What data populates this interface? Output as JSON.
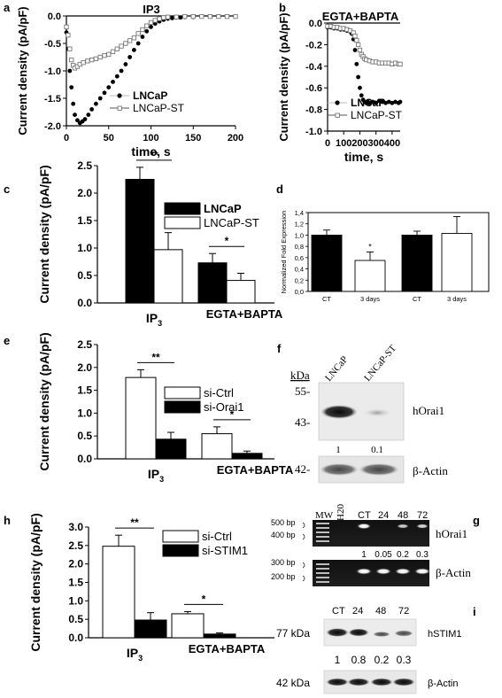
{
  "panel_letters": [
    "a",
    "b",
    "c",
    "d",
    "e",
    "f",
    "h",
    "g",
    "i"
  ],
  "chart_data": [
    {
      "panel": "a",
      "type": "scatter",
      "title": "IP3",
      "xlabel": "time, s",
      "ylabel": "Current density (pA/pF)",
      "xlim": [
        0,
        200
      ],
      "ylim": [
        -2.0,
        0.0
      ],
      "xticks": [
        0,
        50,
        100,
        150,
        200
      ],
      "yticks": [
        -2.0,
        -1.5,
        -1.0,
        -0.5,
        0.0
      ],
      "legend_position": "center-right",
      "series": [
        {
          "name": "LNCaP",
          "marker": "filled-circle",
          "x": [
            0,
            2,
            4,
            6,
            8,
            10,
            13,
            16,
            19,
            22,
            26,
            30,
            35,
            40,
            45,
            50,
            55,
            60,
            65,
            70,
            75,
            80,
            85,
            90,
            95,
            100,
            105,
            110,
            115,
            120,
            125,
            130,
            135,
            140,
            150,
            160,
            170,
            180,
            190,
            200
          ],
          "y": [
            -0.3,
            -0.6,
            -1.0,
            -1.3,
            -1.6,
            -1.8,
            -1.9,
            -1.95,
            -1.92,
            -1.88,
            -1.8,
            -1.7,
            -1.6,
            -1.5,
            -1.4,
            -1.3,
            -1.2,
            -1.1,
            -1.0,
            -0.88,
            -0.75,
            -0.62,
            -0.5,
            -0.38,
            -0.28,
            -0.2,
            -0.14,
            -0.1,
            -0.07,
            -0.05,
            -0.04,
            -0.03,
            -0.03,
            -0.02,
            -0.02,
            -0.01,
            -0.01,
            -0.01,
            -0.01,
            -0.01
          ]
        },
        {
          "name": "LNCaP-ST",
          "marker": "open-square",
          "x": [
            0,
            2,
            4,
            6,
            8,
            10,
            13,
            16,
            20,
            25,
            30,
            35,
            40,
            45,
            50,
            55,
            60,
            65,
            70,
            75,
            80,
            85,
            90,
            95,
            100,
            105,
            110,
            115,
            120,
            130,
            140,
            150,
            160,
            170,
            180,
            190,
            200
          ],
          "y": [
            -0.2,
            -0.35,
            -0.6,
            -0.8,
            -0.9,
            -0.95,
            -0.92,
            -0.88,
            -0.85,
            -0.82,
            -0.8,
            -0.78,
            -0.75,
            -0.72,
            -0.7,
            -0.65,
            -0.6,
            -0.55,
            -0.5,
            -0.45,
            -0.4,
            -0.32,
            -0.25,
            -0.18,
            -0.12,
            -0.08,
            -0.05,
            -0.03,
            -0.02,
            -0.02,
            -0.01,
            -0.01,
            -0.01,
            -0.01,
            -0.01,
            -0.01,
            -0.01
          ]
        }
      ]
    },
    {
      "panel": "b",
      "type": "scatter",
      "title": "EGTA+BAPTA",
      "xlabel": "time, s",
      "ylabel": "Current density (pA/pF)",
      "xlim": [
        0,
        450
      ],
      "ylim": [
        -1.0,
        0.0
      ],
      "xticks": [
        0,
        100,
        200,
        300,
        400
      ],
      "yticks": [
        -1.0,
        -0.8,
        -0.6,
        -0.4,
        -0.2,
        0.0
      ],
      "legend_position": "bottom-left",
      "series": [
        {
          "name": "LNCaP",
          "marker": "filled-circle",
          "x": [
            0,
            20,
            40,
            60,
            80,
            100,
            120,
            140,
            150,
            160,
            170,
            180,
            190,
            200,
            210,
            220,
            230,
            240,
            250,
            260,
            280,
            300,
            320,
            340,
            360,
            380,
            400,
            420,
            440,
            450
          ],
          "y": [
            -0.04,
            -0.04,
            -0.05,
            -0.05,
            -0.06,
            -0.06,
            -0.07,
            -0.08,
            -0.1,
            -0.15,
            -0.25,
            -0.38,
            -0.5,
            -0.6,
            -0.67,
            -0.71,
            -0.73,
            -0.74,
            -0.73,
            -0.74,
            -0.73,
            -0.74,
            -0.72,
            -0.73,
            -0.74,
            -0.73,
            -0.74,
            -0.73,
            -0.74,
            -0.73
          ]
        },
        {
          "name": "LNCaP-ST",
          "marker": "open-square",
          "x": [
            0,
            20,
            40,
            60,
            80,
            100,
            120,
            140,
            160,
            170,
            180,
            190,
            200,
            210,
            220,
            230,
            240,
            260,
            280,
            300,
            320,
            340,
            360,
            380,
            400,
            420,
            440,
            450
          ],
          "y": [
            -0.03,
            -0.03,
            -0.04,
            -0.04,
            -0.05,
            -0.05,
            -0.06,
            -0.07,
            -0.09,
            -0.12,
            -0.16,
            -0.2,
            -0.25,
            -0.29,
            -0.31,
            -0.33,
            -0.34,
            -0.35,
            -0.36,
            -0.36,
            -0.37,
            -0.37,
            -0.37,
            -0.37,
            -0.38,
            -0.37,
            -0.38,
            -0.38
          ]
        }
      ]
    },
    {
      "panel": "c",
      "type": "bar",
      "ylabel": "Current density (pA/pF)",
      "categories": [
        "IP3",
        "EGTA+BAPTA"
      ],
      "ylim": [
        0.0,
        2.5
      ],
      "yticks": [
        0.0,
        0.5,
        1.0,
        1.5,
        2.0,
        2.5
      ],
      "legend_position": "top-right",
      "series": [
        {
          "name": "LNCaP",
          "fill": "black",
          "values": [
            2.25,
            0.73
          ],
          "errors": [
            0.22,
            0.17
          ]
        },
        {
          "name": "LNCaP-ST",
          "fill": "white",
          "values": [
            0.97,
            0.41
          ],
          "errors": [
            0.31,
            0.13
          ]
        }
      ],
      "significance": [
        "**",
        "*"
      ]
    },
    {
      "panel": "d",
      "type": "bar",
      "ylabel": "Normalized Fold Expression",
      "categories": [
        "CT",
        "3 days",
        "CT",
        "3 days"
      ],
      "ylim": [
        0.0,
        1.4
      ],
      "yticks": [
        "0,0",
        "0,2",
        "0,4",
        "0,6",
        "0,8",
        "1,0",
        "1,2",
        "1,4"
      ],
      "values": [
        1.0,
        0.55,
        1.0,
        1.03
      ],
      "errors": [
        0.09,
        0.15,
        0.07,
        0.3
      ],
      "fills": [
        "black",
        "white",
        "black",
        "white"
      ],
      "significance": [
        "",
        "*",
        "",
        ""
      ]
    },
    {
      "panel": "e",
      "type": "bar",
      "ylabel": "Current density (pA/pF)",
      "categories": [
        "IP3",
        "EGTA+BAPTA"
      ],
      "ylim": [
        0.0,
        2.5
      ],
      "yticks": [
        0.0,
        0.5,
        1.0,
        1.5,
        2.0,
        2.5
      ],
      "legend_position": "top-right",
      "series": [
        {
          "name": "si-Ctrl",
          "fill": "white",
          "values": [
            1.78,
            0.55
          ],
          "errors": [
            0.17,
            0.15
          ]
        },
        {
          "name": "si-Orai1",
          "fill": "black",
          "values": [
            0.43,
            0.12
          ],
          "errors": [
            0.15,
            0.05
          ]
        }
      ],
      "significance": [
        "**",
        "*"
      ]
    },
    {
      "panel": "h",
      "type": "bar",
      "ylabel": "Current density (pA/pF)",
      "categories": [
        "IP3",
        "EGTA+BAPTA"
      ],
      "ylim": [
        0.0,
        3.0
      ],
      "yticks": [
        0.0,
        0.5,
        1.0,
        1.5,
        2.0,
        2.5,
        3.0
      ],
      "legend_position": "top-right",
      "series": [
        {
          "name": "si-Ctrl",
          "fill": "white",
          "values": [
            2.48,
            0.65
          ],
          "errors": [
            0.3,
            0.06
          ]
        },
        {
          "name": "si-STIM1",
          "fill": "black",
          "values": [
            0.48,
            0.1
          ],
          "errors": [
            0.2,
            0.03
          ]
        }
      ],
      "significance": [
        "**",
        "*"
      ]
    }
  ],
  "blots": {
    "f": {
      "kda_header": "kDa",
      "lanes": [
        "LNCaP",
        "LNCaP-ST"
      ],
      "markers": [
        "55-",
        "43-",
        "42-"
      ],
      "targets": [
        "hOrai1",
        "β-Actin"
      ],
      "quant": [
        "1",
        "0.1"
      ]
    },
    "g": {
      "lanes": [
        "MW",
        "H20",
        "CT",
        "24",
        "48",
        "72"
      ],
      "bp_markers": [
        "500 bp",
        "400 bp",
        "300 bp",
        "200 bp"
      ],
      "targets": [
        "hOrai1",
        "β-Actin"
      ],
      "quant": [
        "1",
        "0.05",
        "0.2",
        "0.3"
      ]
    },
    "i": {
      "lanes": [
        "CT",
        "24",
        "48",
        "72"
      ],
      "markers": [
        "77 kDa",
        "42 kDa"
      ],
      "targets": [
        "hSTIM1",
        "β-Actin"
      ],
      "quant": [
        "1",
        "0.8",
        "0.2",
        "0.3"
      ]
    }
  }
}
